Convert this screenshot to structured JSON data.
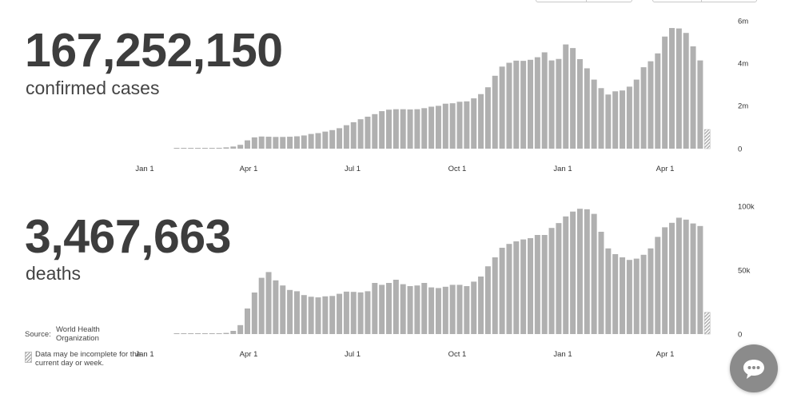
{
  "cases": {
    "total": "167,252,150",
    "label": "confirmed cases"
  },
  "deaths": {
    "total": "3,467,663",
    "label": "deaths"
  },
  "source": {
    "label": "Source:",
    "value": "World Health Organization"
  },
  "note": "Data may be incomplete for the current day or week.",
  "colors": {
    "bar": "#b0b0b0",
    "accent": "#1a8cd8",
    "text": "#3d3d3d",
    "chat": "#8b8b8b"
  },
  "icons": {
    "chat": "chat-bubble-icon"
  },
  "chart_data": [
    {
      "type": "bar",
      "title": "confirmed cases",
      "x_tick_labels": [
        "Jan 1",
        "Apr 1",
        "Jul 1",
        "Oct 1",
        "Jan 1",
        "Apr 1"
      ],
      "y_tick_labels": [
        "6m",
        "4m",
        "2m",
        "0"
      ],
      "ylim": [
        0,
        6000000
      ],
      "grid": false,
      "incomplete_last_bar": true,
      "values": [
        5000,
        8000,
        10000,
        15000,
        20000,
        30000,
        40000,
        60000,
        100000,
        180000,
        390000,
        530000,
        570000,
        560000,
        550000,
        550000,
        560000,
        580000,
        620000,
        690000,
        730000,
        800000,
        870000,
        960000,
        1100000,
        1240000,
        1380000,
        1500000,
        1620000,
        1760000,
        1830000,
        1850000,
        1850000,
        1840000,
        1850000,
        1900000,
        1970000,
        2010000,
        2110000,
        2130000,
        2200000,
        2220000,
        2360000,
        2560000,
        2880000,
        3420000,
        3850000,
        4030000,
        4130000,
        4120000,
        4170000,
        4290000,
        4520000,
        4140000,
        4210000,
        4890000,
        4720000,
        4200000,
        3770000,
        3240000,
        2840000,
        2540000,
        2690000,
        2730000,
        2910000,
        3240000,
        3820000,
        4100000,
        4470000,
        5260000,
        5660000,
        5640000,
        5430000,
        4800000,
        4140000,
        900000
      ]
    },
    {
      "type": "bar",
      "title": "deaths",
      "x_tick_labels": [
        "Jan 1",
        "Apr 1",
        "Jul 1",
        "Oct 1",
        "Jan 1",
        "Apr 1"
      ],
      "y_tick_labels": [
        "100k",
        "50k",
        "0"
      ],
      "ylim": [
        0,
        100000
      ],
      "grid": false,
      "incomplete_last_bar": true,
      "values": [
        100,
        150,
        200,
        300,
        400,
        500,
        600,
        900,
        2500,
        7000,
        20000,
        32500,
        44000,
        48500,
        42000,
        38000,
        34500,
        33500,
        30500,
        29200,
        28700,
        29500,
        29800,
        31500,
        33200,
        33000,
        32600,
        33500,
        40000,
        38500,
        40000,
        42500,
        39000,
        37500,
        38000,
        40000,
        36500,
        36000,
        37000,
        38500,
        38500,
        37500,
        41000,
        45000,
        53000,
        60000,
        67500,
        70500,
        72500,
        74000,
        75000,
        77500,
        77500,
        83000,
        86800,
        92000,
        95800,
        98000,
        97600,
        94000,
        80000,
        67000,
        62500,
        60000,
        58000,
        59000,
        62000,
        67000,
        76000,
        83500,
        87000,
        91000,
        89500,
        86500,
        84500,
        17000
      ]
    }
  ]
}
